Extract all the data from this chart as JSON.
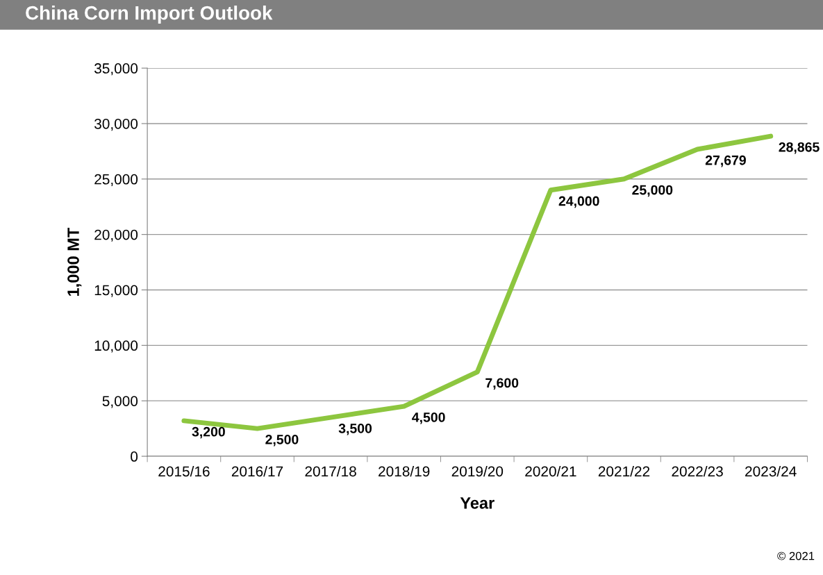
{
  "chart_data": {
    "type": "line",
    "title": "China Corn Import Outlook",
    "xlabel": "Year",
    "ylabel": "1,000 MT",
    "categories": [
      "2015/16",
      "2016/17",
      "2017/18",
      "2018/19",
      "2019/20",
      "2020/21",
      "2021/22",
      "2022/23",
      "2023/24"
    ],
    "series": [
      {
        "color": "#8dc63f",
        "values": [
          3200,
          2500,
          3500,
          4500,
          7600,
          24000,
          25000,
          27679,
          28865
        ],
        "value_labels": [
          "3,200",
          "2,500",
          "3,500",
          "4,500",
          "7,600",
          "24,000",
          "25,000",
          "27,679",
          "28,865"
        ]
      }
    ],
    "ylim": [
      0,
      35000
    ],
    "yticks": [
      {
        "value": 0,
        "label": "0"
      },
      {
        "value": 5000,
        "label": "5,000"
      },
      {
        "value": 10000,
        "label": "10,000"
      },
      {
        "value": 15000,
        "label": "15,000"
      },
      {
        "value": 20000,
        "label": "20,000"
      },
      {
        "value": 25000,
        "label": "25,000"
      },
      {
        "value": 30000,
        "label": "30,000"
      },
      {
        "value": 35000,
        "label": "35,000"
      }
    ],
    "grid": "y",
    "legend": false,
    "marker": "none",
    "line_style": "solid",
    "annotations": [
      "© 2021"
    ]
  }
}
